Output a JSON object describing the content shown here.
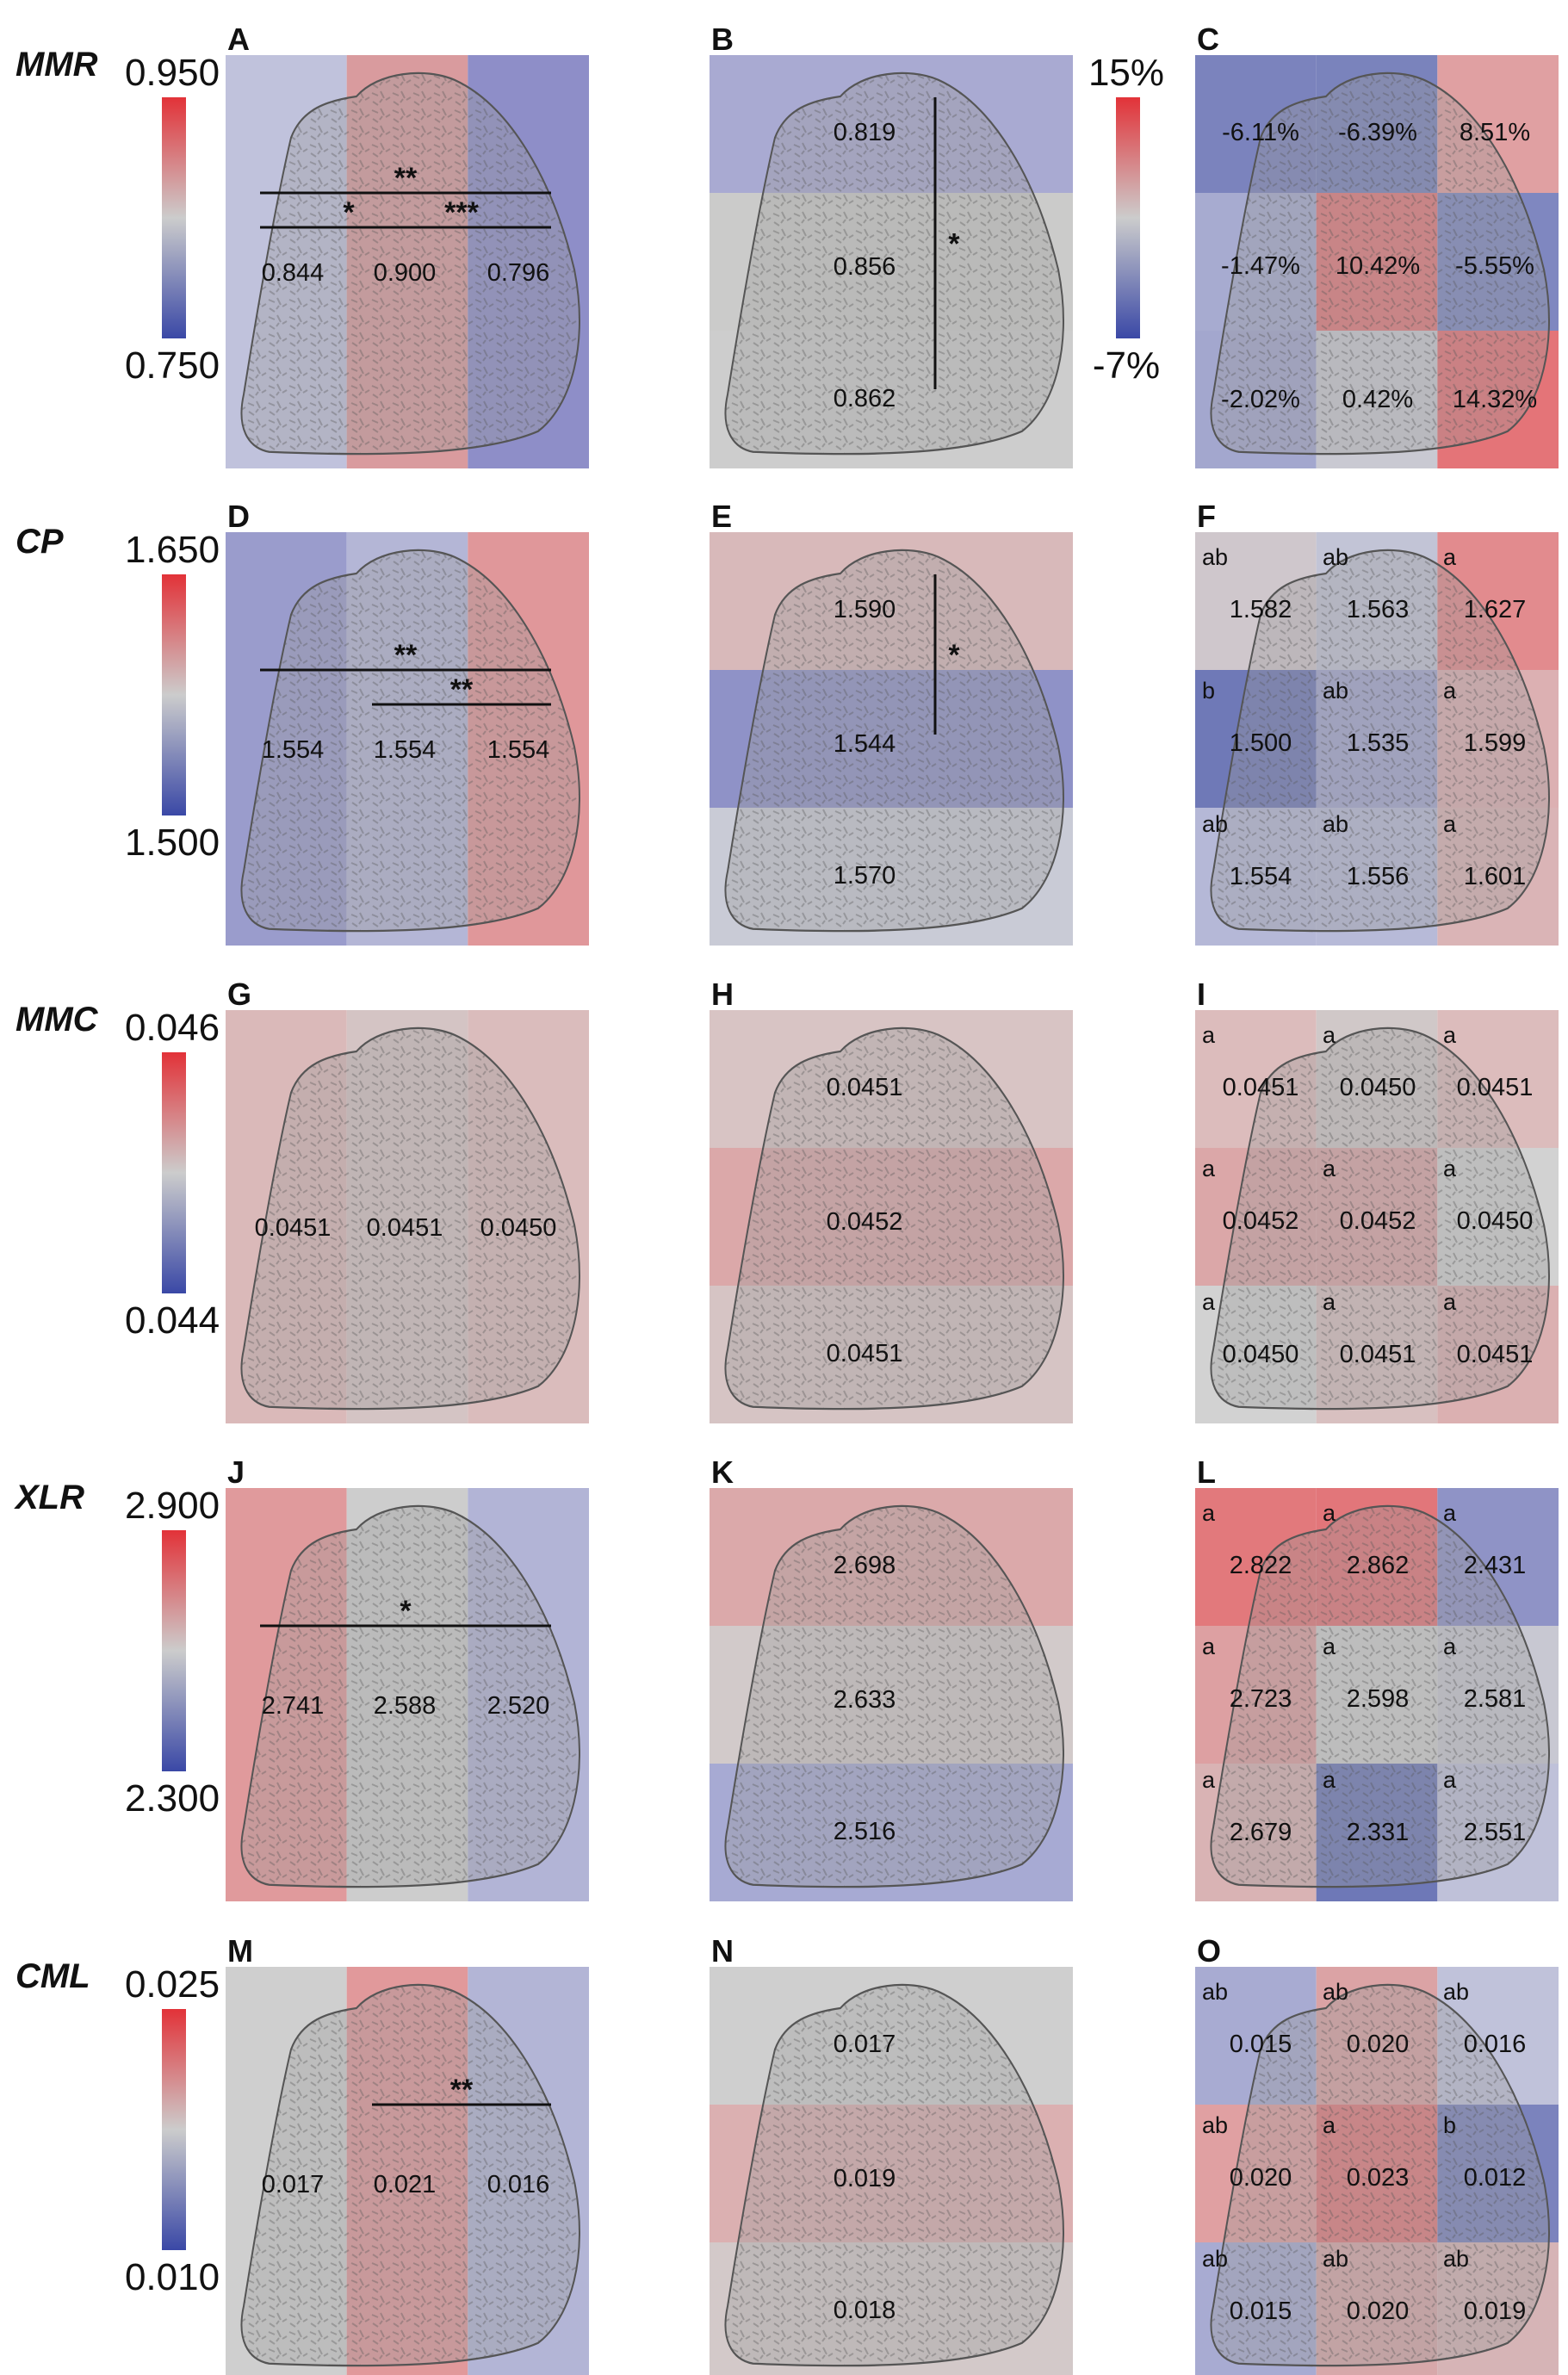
{
  "rows": [
    {
      "id": "mmr",
      "metric": "MMR",
      "scale": {
        "max": "0.950",
        "min": "0.750"
      },
      "letters": [
        "A",
        "B",
        "C"
      ],
      "cols3": {
        "values": [
          "0.844",
          "0.900",
          "0.796"
        ],
        "colors": [
          "#c0c2dc",
          "#d99b9e",
          "#8e8ec8"
        ],
        "bars": [
          {
            "label": "**",
            "from": 0,
            "to": 2
          },
          {
            "label": "*",
            "from": 0,
            "to": 1
          },
          {
            "label": "***",
            "from": 1,
            "to": 2
          }
        ]
      },
      "rows3": {
        "values": [
          "0.819",
          "0.856",
          "0.862"
        ],
        "colors": [
          "#a9aad2",
          "#cbcbca",
          "#cdcdcd"
        ],
        "bars": [
          {
            "label": "*",
            "from": 0,
            "to": 2
          }
        ]
      },
      "grid": {
        "values": [
          "-6.11%",
          "-6.39%",
          "8.51%",
          "-1.47%",
          "10.42%",
          "-5.55%",
          "-2.02%",
          "0.42%",
          "14.32%"
        ],
        "letters": [
          "",
          "",
          "",
          "",
          "",
          "",
          "",
          "",
          ""
        ],
        "colors": [
          "#7b83bd",
          "#7a83bc",
          "#e0a0a2",
          "#a7abd0",
          "#e07a7d",
          "#7f87c0",
          "#a3a7ce",
          "#c9c9d2",
          "#e47478"
        ]
      }
    },
    {
      "id": "cp",
      "metric": "CP",
      "scale": {
        "max": "1.650",
        "min": "1.500"
      },
      "letters": [
        "D",
        "E",
        "F"
      ],
      "cols3": {
        "values": [
          "1.554",
          "1.554",
          "1.554"
        ],
        "colors": [
          "#9a9ccc",
          "#b4b6d6",
          "#e0979a"
        ],
        "bars": [
          {
            "label": "**",
            "from": 0,
            "to": 2
          },
          {
            "label": "**",
            "from": 1,
            "to": 2
          }
        ]
      },
      "rows3": {
        "values": [
          "1.590",
          "1.544",
          "1.570"
        ],
        "colors": [
          "#d8b9ba",
          "#8f92c7",
          "#c9cbd6"
        ],
        "bars": [
          {
            "label": "*",
            "from": 0,
            "to": 1
          }
        ]
      },
      "grid": {
        "values": [
          "1.582",
          "1.563",
          "1.627",
          "1.500",
          "1.535",
          "1.599",
          "1.554",
          "1.556",
          "1.601"
        ],
        "letters": [
          "ab",
          "ab",
          "a",
          "b",
          "ab",
          "a",
          "ab",
          "ab",
          "a"
        ],
        "colors": [
          "#cfc7cc",
          "#c2c4d6",
          "#e28b8e",
          "#6f79b7",
          "#a3a7cf",
          "#dcb0b2",
          "#b5b8d7",
          "#b7bad8",
          "#dab4b6"
        ]
      }
    },
    {
      "id": "mmc",
      "metric": "MMC",
      "scale": {
        "max": "0.046",
        "min": "0.044"
      },
      "letters": [
        "G",
        "H",
        "I"
      ],
      "cols3": {
        "values": [
          "0.0451",
          "0.0451",
          "0.0450"
        ],
        "colors": [
          "#dab9b9",
          "#d4c4c4",
          "#dabcbc"
        ],
        "bars": []
      },
      "rows3": {
        "values": [
          "0.0451",
          "0.0452",
          "0.0451"
        ],
        "colors": [
          "#d8c4c4",
          "#dba8a9",
          "#d6c4c4"
        ],
        "bars": []
      },
      "grid": {
        "values": [
          "0.0451",
          "0.0450",
          "0.0451",
          "0.0452",
          "0.0452",
          "0.0450",
          "0.0450",
          "0.0451",
          "0.0451"
        ],
        "letters": [
          "a",
          "a",
          "a",
          "a",
          "a",
          "a",
          "a",
          "a",
          "a"
        ],
        "colors": [
          "#dcbcbc",
          "#d0c8c8",
          "#dcbcbc",
          "#dba7a8",
          "#dba7a8",
          "#d2d2d2",
          "#d2d2d2",
          "#d8c0c0",
          "#dbb0b1"
        ]
      }
    },
    {
      "id": "xlr",
      "metric": "XLR",
      "scale": {
        "max": "2.900",
        "min": "2.300"
      },
      "letters": [
        "J",
        "K",
        "L"
      ],
      "cols3": {
        "values": [
          "2.741",
          "2.588",
          "2.520"
        ],
        "colors": [
          "#e09a9c",
          "#cdcdcd",
          "#b2b4d6"
        ],
        "bars": [
          {
            "label": "*",
            "from": 0,
            "to": 2
          }
        ]
      },
      "rows3": {
        "values": [
          "2.698",
          "2.633",
          "2.516"
        ],
        "colors": [
          "#dba9aa",
          "#d2caca",
          "#a7aad3"
        ],
        "bars": []
      },
      "grid": {
        "values": [
          "2.822",
          "2.862",
          "2.431",
          "2.723",
          "2.598",
          "2.581",
          "2.679",
          "2.331",
          "2.551"
        ],
        "letters": [
          "a",
          "a",
          "a",
          "a",
          "a",
          "a",
          "a",
          "a",
          "a"
        ],
        "colors": [
          "#e2797c",
          "#e2767a",
          "#8f93c6",
          "#dda0a2",
          "#cfcfcf",
          "#c8c8d2",
          "#d9b3b4",
          "#6e78b7",
          "#bfc1d9"
        ]
      }
    },
    {
      "id": "cml",
      "metric": "CML",
      "scale": {
        "max": "0.025",
        "min": "0.010"
      },
      "letters": [
        "M",
        "N",
        "O"
      ],
      "cols3": {
        "values": [
          "0.017",
          "0.021",
          "0.016"
        ],
        "colors": [
          "#cfcfcf",
          "#e1999b",
          "#b3b5d6"
        ],
        "bars": [
          {
            "label": "**",
            "from": 1,
            "to": 2
          }
        ]
      },
      "rows3": {
        "values": [
          "0.017",
          "0.019",
          "0.018"
        ],
        "colors": [
          "#cfcfcf",
          "#dbb0b1",
          "#d3c9c9"
        ],
        "bars": []
      },
      "grid": {
        "values": [
          "0.015",
          "0.020",
          "0.016",
          "0.020",
          "0.023",
          "0.012",
          "0.015",
          "0.020",
          "0.019"
        ],
        "letters": [
          "ab",
          "ab",
          "ab",
          "ab",
          "a",
          "b",
          "ab",
          "ab",
          "ab"
        ],
        "colors": [
          "#a8abd2",
          "#dba3a5",
          "#c0c2da",
          "#e0a0a2",
          "#e07c7f",
          "#7b83bd",
          "#a8abd2",
          "#d7a8aa",
          "#d6b4b6"
        ]
      }
    }
  ],
  "pct_scale": {
    "max": "15%",
    "min": "-7%"
  }
}
